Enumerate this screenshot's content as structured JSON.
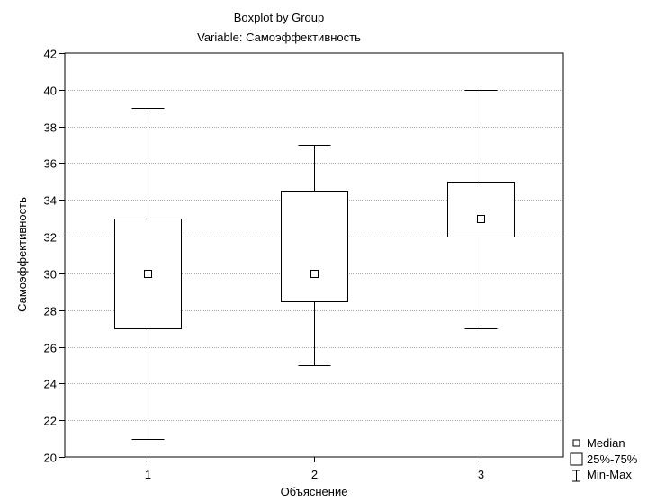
{
  "chart_data": {
    "type": "boxplot",
    "title": "Boxplot by Group",
    "subtitle": "Variable: Самоэффективность",
    "xlabel": "Объяснение",
    "ylabel": "Самоэффективность",
    "ylim": [
      20,
      42
    ],
    "yticks": [
      "20",
      "22",
      "24",
      "26",
      "28",
      "30",
      "32",
      "34",
      "36",
      "38",
      "40",
      "42"
    ],
    "grid": true,
    "legend_position": "bottom-right",
    "legend": {
      "median": "Median",
      "box": "25%-75%",
      "whisker": "Min-Max"
    },
    "groups": [
      {
        "label": "1",
        "min": 21,
        "q1": 27,
        "median": 30,
        "q3": 33,
        "max": 39
      },
      {
        "label": "2",
        "min": 25,
        "q1": 28.5,
        "median": 30,
        "q3": 34.5,
        "max": 37
      },
      {
        "label": "3",
        "min": 27,
        "q1": 32,
        "median": 33,
        "q3": 35,
        "max": 40
      }
    ]
  }
}
